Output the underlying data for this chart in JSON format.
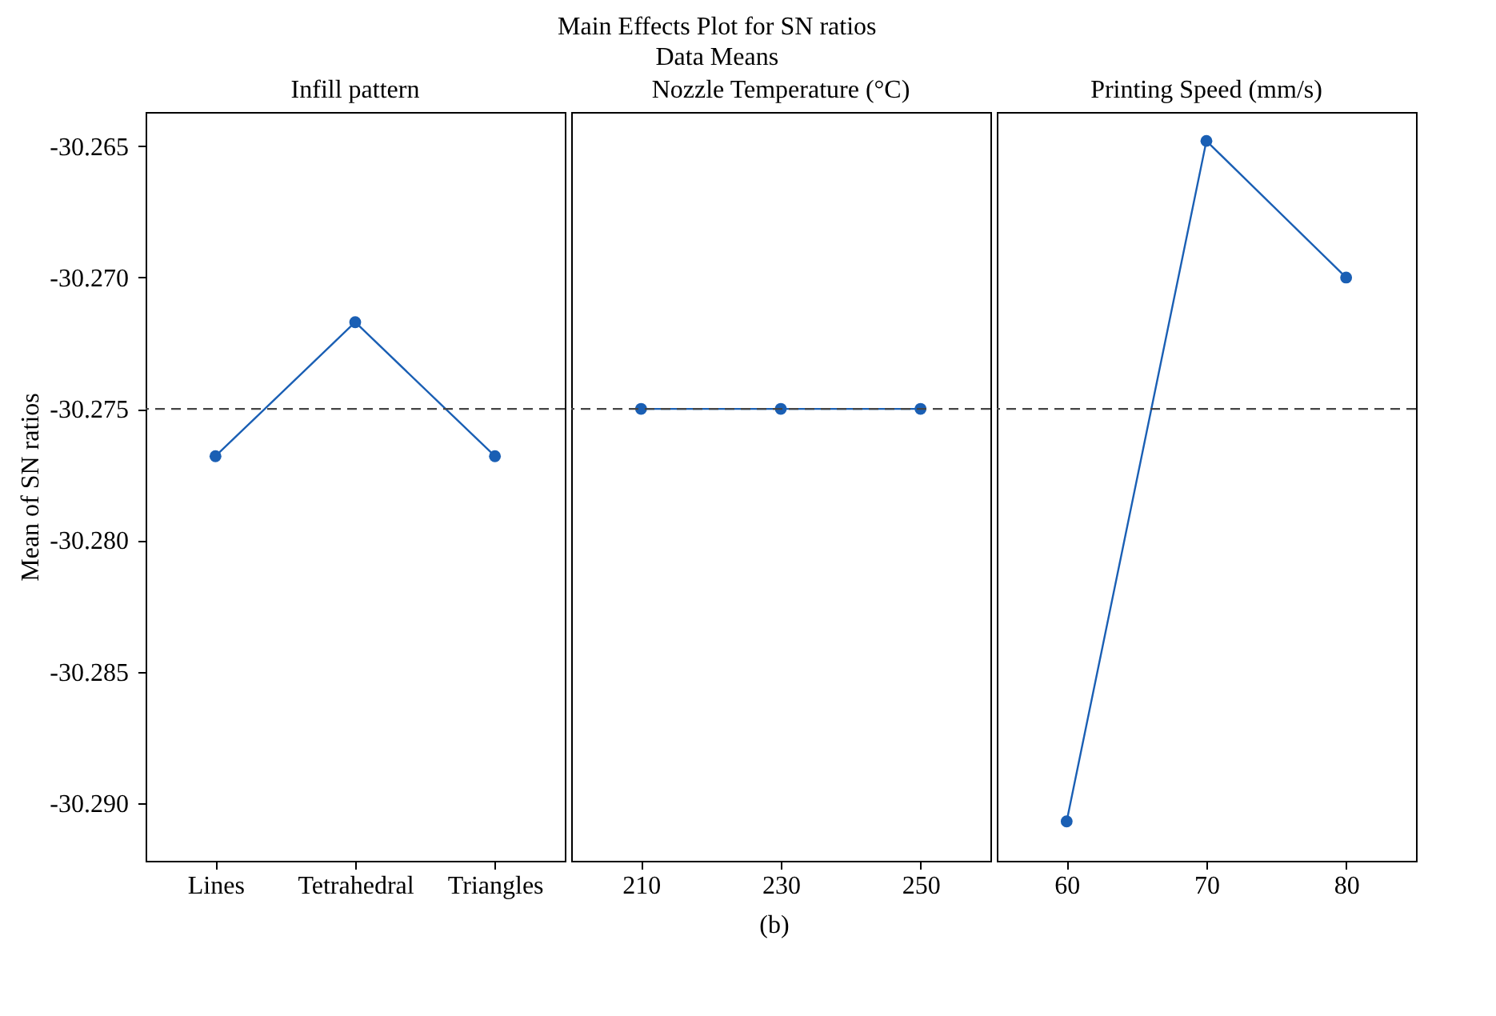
{
  "chart_data": [
    {
      "type": "line",
      "title": "Infill pattern",
      "ylabel": "Mean of SN ratios",
      "annotations": [
        "Main Effects Plot for SN ratios",
        "Data Means",
        "(b)"
      ],
      "categories": [
        "Lines",
        "Tetrahedral",
        "Triangles"
      ],
      "series": [
        {
          "color": "#1a5fb4",
          "values": [
            -30.2768,
            -30.2717,
            -30.2768
          ]
        }
      ],
      "ylim": [
        -30.2922,
        -30.2637
      ],
      "yticks": [
        {
          "value": -30.265,
          "label": "-30.265"
        },
        {
          "value": -30.27,
          "label": "-30.270"
        },
        {
          "value": -30.275,
          "label": "-30.275"
        },
        {
          "value": -30.28,
          "label": "-30.280"
        },
        {
          "value": -30.285,
          "label": "-30.285"
        },
        {
          "value": -30.29,
          "label": "-30.290"
        }
      ],
      "ref_lines": [
        {
          "axis": "y",
          "value": -30.275,
          "line_style": "dashed",
          "color": "#444444"
        }
      ],
      "grid": false,
      "marker": "circle",
      "line_style": "solid"
    },
    {
      "type": "line",
      "title": "Nozzle Temperature (°C)",
      "categories": [
        "210",
        "230",
        "250"
      ],
      "series": [
        {
          "color": "#1a5fb4",
          "values": [
            -30.275,
            -30.275,
            -30.275
          ]
        }
      ],
      "ylim": [
        -30.2922,
        -30.2637
      ],
      "ref_lines": [
        {
          "axis": "y",
          "value": -30.275,
          "line_style": "dashed",
          "color": "#444444"
        }
      ],
      "grid": false,
      "marker": "circle",
      "line_style": "solid",
      "tick_labels": "x"
    },
    {
      "type": "line",
      "title": "Printing Speed (mm/s)",
      "categories": [
        "60",
        "70",
        "80"
      ],
      "series": [
        {
          "color": "#1a5fb4",
          "values": [
            -30.2907,
            -30.2648,
            -30.27
          ]
        }
      ],
      "ylim": [
        -30.2922,
        -30.2637
      ],
      "ref_lines": [
        {
          "axis": "y",
          "value": -30.275,
          "line_style": "dashed",
          "color": "#444444"
        }
      ],
      "grid": false,
      "marker": "circle",
      "line_style": "solid",
      "tick_labels": "x"
    }
  ]
}
